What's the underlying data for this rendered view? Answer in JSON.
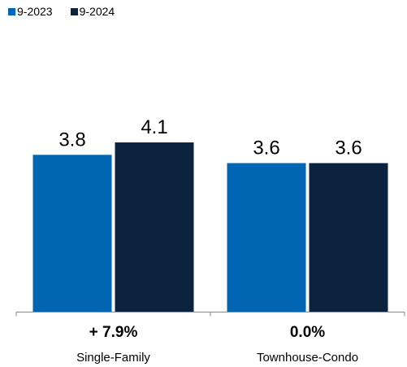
{
  "chart_data": {
    "type": "bar",
    "categories": [
      "Single-Family",
      "Townhouse-Condo"
    ],
    "changes": [
      "+ 7.9%",
      "0.0%"
    ],
    "series": [
      {
        "name": "9-2023",
        "color": "#0066b3",
        "values": [
          3.8,
          3.6
        ]
      },
      {
        "name": "9-2024",
        "color": "#0c2340",
        "values": [
          4.1,
          3.6
        ]
      }
    ],
    "data_labels": [
      [
        "3.8",
        "3.6"
      ],
      [
        "4.1",
        "3.6"
      ]
    ],
    "title": "",
    "xlabel": "",
    "ylabel": "",
    "ylim": [
      0,
      5.9
    ],
    "legend_position": "top-left",
    "grid": false
  }
}
